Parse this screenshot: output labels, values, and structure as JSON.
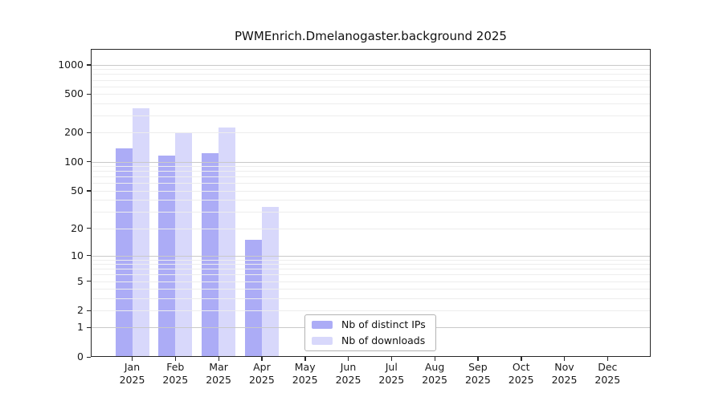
{
  "title": "PWMEnrich.Dmelanogaster.background 2025",
  "chart_data": {
    "type": "bar",
    "title": "PWMEnrich.Dmelanogaster.background 2025",
    "categories": [
      "Jan",
      "Feb",
      "Mar",
      "Apr",
      "May",
      "Jun",
      "Jul",
      "Aug",
      "Sep",
      "Oct",
      "Nov",
      "Dec"
    ],
    "year_label": "2025",
    "series": [
      {
        "name": "Nb of distinct IPs",
        "color": "rgba(112,112,240,0.58)",
        "values": [
          137,
          116,
          123,
          15,
          0,
          0,
          0,
          0,
          0,
          0,
          0,
          0
        ]
      },
      {
        "name": "Nb of downloads",
        "color": "rgba(112,112,240,0.27)",
        "values": [
          360,
          196,
          227,
          34,
          0,
          0,
          0,
          0,
          0,
          0,
          0,
          0
        ]
      }
    ],
    "y_ticks": [
      0,
      1,
      2,
      5,
      10,
      20,
      50,
      100,
      200,
      500,
      1000
    ],
    "y_scale": "log10(value+1)",
    "ylim": [
      0,
      1000
    ],
    "xlabel": "",
    "ylabel": "",
    "grid": "on (minor + major horizontal)",
    "legend_position": "lower center, inside plot"
  },
  "colors": {
    "bar_ips": "rgba(112,112,240,0.58)",
    "bar_downloads": "rgba(112,112,240,0.27)",
    "grid_major": "#c9c9c9",
    "grid_minor": "#ededed",
    "frame": "#262626"
  }
}
